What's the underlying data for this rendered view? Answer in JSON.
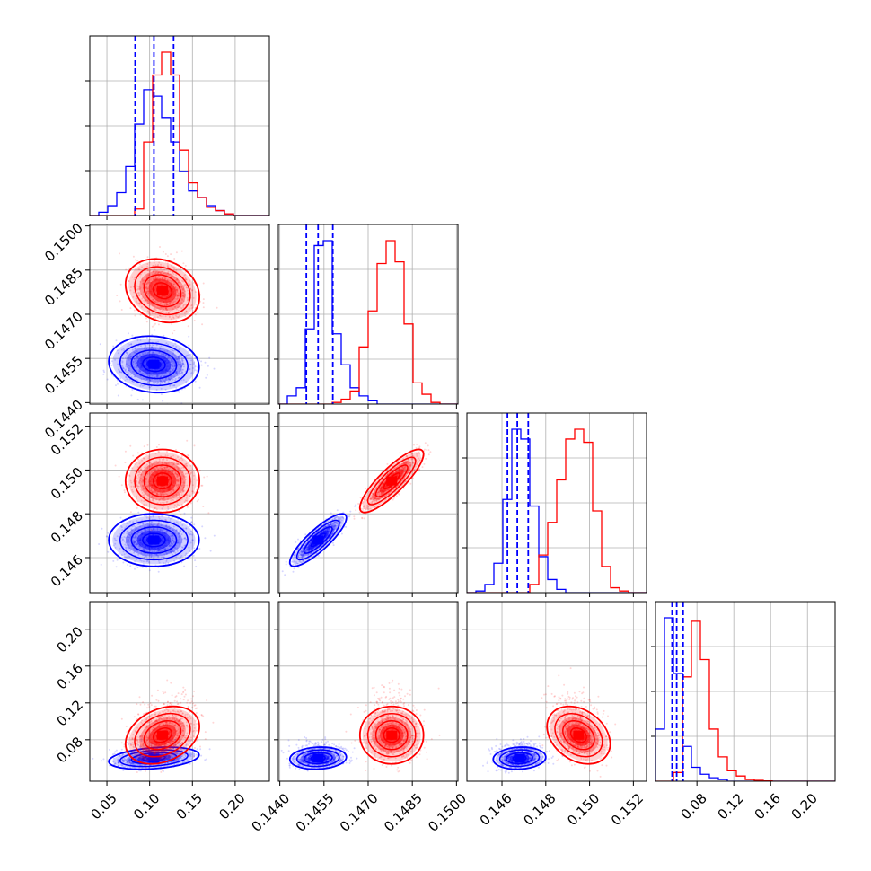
{
  "figure": {
    "kind": "corner plot"
  },
  "colors": {
    "red_series": "#ff0000",
    "blue_series": "#0000ff",
    "grid": "#b0b0b0",
    "frame": "#000000"
  },
  "chart_data": {
    "type": "corner",
    "grid_on": true,
    "params": [
      {
        "lim": [
          0.03,
          0.24
        ],
        "ticks": [
          0.05,
          0.1,
          0.15,
          0.2
        ],
        "tick_labels": [
          "0.05",
          "0.10",
          "0.15",
          "0.20"
        ]
      },
      {
        "lim": [
          0.14395,
          0.15005
        ],
        "ticks": [
          0.144,
          0.1455,
          0.147,
          0.1485,
          0.15
        ],
        "tick_labels": [
          "0.1440",
          "0.1455",
          "0.1470",
          "0.1485",
          "0.1500"
        ]
      },
      {
        "lim": [
          0.1444,
          0.1526
        ],
        "ticks": [
          0.146,
          0.148,
          0.15,
          0.152
        ],
        "tick_labels": [
          "0.146",
          "0.148",
          "0.150",
          "0.152"
        ]
      },
      {
        "lim": [
          0.035,
          0.23
        ],
        "ticks": [
          0.08,
          0.12,
          0.16,
          0.2
        ],
        "tick_labels": [
          "0.08",
          "0.12",
          "0.16",
          "0.20"
        ]
      }
    ],
    "series": [
      {
        "color": "#ff0000",
        "mean": [
          0.115,
          0.1478,
          0.1495,
          0.085
        ],
        "std": [
          0.018,
          0.00045,
          0.0006,
          0.013
        ],
        "corr": [
          [
            1,
            -0.2,
            0.0,
            0.3
          ],
          [
            -0.2,
            1,
            0.85,
            0.0
          ],
          [
            0.0,
            0.85,
            1,
            -0.3
          ],
          [
            0.3,
            0.0,
            -0.3,
            1
          ]
        ],
        "quantile_markers": []
      },
      {
        "color": "#0000ff",
        "mean": [
          0.105,
          0.1453,
          0.1468,
          0.06
        ],
        "std": [
          0.022,
          0.0004,
          0.0005,
          0.005
        ],
        "corr": [
          [
            1,
            -0.1,
            0.0,
            0.3
          ],
          [
            -0.1,
            1,
            0.85,
            0.1
          ],
          [
            0.0,
            0.85,
            1,
            0.1
          ],
          [
            0.3,
            0.1,
            0.1,
            1
          ]
        ],
        "quantile_markers": [
          [
            0.083,
            0.105,
            0.128
          ],
          [
            0.1449,
            0.1453,
            0.1458
          ],
          [
            0.14625,
            0.1467,
            0.1472
          ],
          [
            0.053,
            0.058,
            0.065
          ]
        ]
      }
    ],
    "histograms": [
      {
        "edges": [
          0.03,
          0.0405,
          0.051,
          0.0615,
          0.072,
          0.0825,
          0.093,
          0.1035,
          0.114,
          0.1245,
          0.135,
          0.1455,
          0.156,
          0.1665,
          0.177,
          0.1875,
          0.198,
          0.2085,
          0.219,
          0.2295,
          0.24
        ],
        "red": [
          0,
          0,
          0,
          0,
          0,
          0.04,
          0.45,
          0.86,
          1.0,
          0.86,
          0.4,
          0.2,
          0.11,
          0.05,
          0.03,
          0.01,
          0,
          0,
          0,
          0
        ],
        "blue": [
          0,
          0.02,
          0.06,
          0.14,
          0.3,
          0.56,
          0.77,
          0.73,
          0.6,
          0.45,
          0.27,
          0.15,
          0.11,
          0.06,
          0.03,
          0.01,
          0,
          0,
          0,
          0
        ]
      },
      {
        "edges": [
          0.14395,
          0.144255,
          0.14456,
          0.144865,
          0.14517,
          0.145475,
          0.14578,
          0.146085,
          0.14639,
          0.146695,
          0.147,
          0.147305,
          0.14761,
          0.147915,
          0.14822,
          0.148525,
          0.14883,
          0.149135,
          0.14944,
          0.149745,
          0.15005
        ],
        "red": [
          0,
          0,
          0,
          0,
          0,
          0,
          0.01,
          0.03,
          0.08,
          0.35,
          0.57,
          0.86,
          1.0,
          0.87,
          0.49,
          0.13,
          0.06,
          0.01,
          0,
          0
        ],
        "blue": [
          0,
          0.05,
          0.1,
          0.46,
          0.97,
          1.0,
          0.43,
          0.24,
          0.1,
          0.05,
          0.02,
          0,
          0,
          0,
          0,
          0,
          0,
          0,
          0,
          0
        ]
      },
      {
        "edges": [
          0.1444,
          0.14481,
          0.14522,
          0.14563,
          0.14604,
          0.14645,
          0.14686,
          0.14727,
          0.14768,
          0.14809,
          0.1485,
          0.14891,
          0.14932,
          0.14973,
          0.15014,
          0.15055,
          0.15096,
          0.15137,
          0.15178,
          0.15219,
          0.1526
        ],
        "red": [
          0,
          0,
          0,
          0,
          0,
          0,
          0,
          0.05,
          0.23,
          0.43,
          0.69,
          0.94,
          1.0,
          0.92,
          0.5,
          0.16,
          0.03,
          0.01,
          0,
          0
        ],
        "blue": [
          0,
          0.01,
          0.05,
          0.18,
          0.57,
          1.0,
          0.94,
          0.53,
          0.22,
          0.08,
          0.02,
          0,
          0,
          0,
          0,
          0,
          0,
          0,
          0,
          0
        ]
      },
      {
        "edges": [
          0.035,
          0.04475,
          0.0545,
          0.06425,
          0.074,
          0.08375,
          0.0935,
          0.10325,
          0.113,
          0.12275,
          0.1325,
          0.14225,
          0.152,
          0.16175,
          0.1715,
          0.18125,
          0.191,
          0.20075,
          0.2105,
          0.22025,
          0.23
        ],
        "red": [
          0,
          0,
          0.05,
          0.6,
          0.92,
          0.7,
          0.3,
          0.14,
          0.06,
          0.03,
          0.01,
          0.005,
          0.002,
          0,
          0,
          0,
          0,
          0,
          0,
          0
        ],
        "blue": [
          0.3,
          0.94,
          0.62,
          0.2,
          0.08,
          0.04,
          0.02,
          0.01,
          0,
          0,
          0,
          0,
          0,
          0,
          0,
          0,
          0,
          0,
          0,
          0
        ]
      }
    ]
  }
}
